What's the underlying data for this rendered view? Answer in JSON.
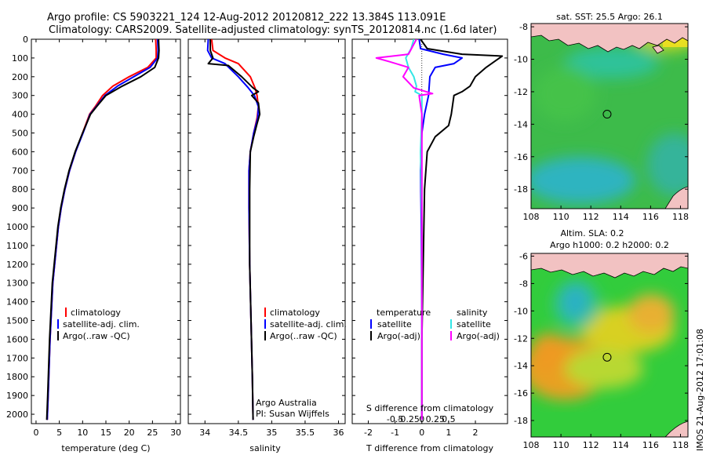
{
  "header": {
    "line1": "Argo profile: CS 5903221_124 12-Aug-2012 20120812_222 13.384S 113.091E",
    "line2": "Climatology: CARS2009. Satellite-adjusted climatology: synTS_20120814.nc (1.6d later)"
  },
  "colors": {
    "climatology": "#ff0000",
    "satellite": "#0000ff",
    "argo": "#000000",
    "sal_satellite": "#33e6e6",
    "sal_argo": "#ff00ff",
    "land": "#f2c2c2",
    "map_ocean": "#33cc55",
    "map_high": "#e8a020",
    "map_low": "#3399ee"
  },
  "chart_data": [
    {
      "type": "line",
      "panel": "temperature",
      "xlabel": "temperature (deg C)",
      "ylabel": "",
      "xlim": [
        -1,
        31
      ],
      "ylim": [
        2050,
        0
      ],
      "xticks": [
        "0",
        "5",
        "10",
        "15",
        "20",
        "25",
        "30"
      ],
      "yticks": [
        "0",
        "100",
        "200",
        "300",
        "400",
        "500",
        "600",
        "700",
        "800",
        "900",
        "1000",
        "1100",
        "1200",
        "1300",
        "1400",
        "1500",
        "1600",
        "1700",
        "1800",
        "1900",
        "2000"
      ],
      "series": [
        {
          "name": "climatology",
          "color_key": "climatology",
          "points": [
            [
              25.7,
              0
            ],
            [
              25.8,
              60
            ],
            [
              25.8,
              100
            ],
            [
              24,
              150
            ],
            [
              20,
              200
            ],
            [
              16.5,
              250
            ],
            [
              14.3,
              300
            ],
            [
              12.7,
              360
            ],
            [
              11.5,
              400
            ],
            [
              10,
              500
            ],
            [
              8.5,
              600
            ],
            [
              7.2,
              700
            ],
            [
              6.2,
              800
            ],
            [
              5.4,
              900
            ],
            [
              4.8,
              1000
            ],
            [
              3.6,
              1300
            ],
            [
              3,
              1600
            ],
            [
              2.6,
              1900
            ],
            [
              2.4,
              2030
            ]
          ]
        },
        {
          "name": "satellite-adj. clim.",
          "color_key": "satellite",
          "points": [
            [
              26.1,
              0
            ],
            [
              26.2,
              60
            ],
            [
              26.1,
              100
            ],
            [
              24.5,
              150
            ],
            [
              21,
              200
            ],
            [
              17.5,
              250
            ],
            [
              14.8,
              300
            ],
            [
              12.9,
              360
            ],
            [
              11.6,
              400
            ],
            [
              10.1,
              500
            ],
            [
              8.5,
              600
            ],
            [
              7.2,
              700
            ],
            [
              6.2,
              800
            ],
            [
              5.4,
              900
            ],
            [
              4.8,
              1000
            ],
            [
              3.6,
              1300
            ],
            [
              3,
              1600
            ],
            [
              2.6,
              1900
            ],
            [
              2.4,
              2030
            ]
          ]
        },
        {
          "name": "Argo(..raw -QC)",
          "color_key": "argo",
          "points": [
            [
              26.3,
              0
            ],
            [
              26.4,
              60
            ],
            [
              26.3,
              100
            ],
            [
              25.5,
              150
            ],
            [
              22.5,
              200
            ],
            [
              18.5,
              250
            ],
            [
              15,
              300
            ],
            [
              13,
              360
            ],
            [
              11.7,
              400
            ],
            [
              10,
              500
            ],
            [
              8.4,
              600
            ],
            [
              7.1,
              700
            ],
            [
              6.1,
              800
            ],
            [
              5.3,
              900
            ],
            [
              4.7,
              1000
            ],
            [
              3.5,
              1300
            ],
            [
              2.9,
              1600
            ],
            [
              2.5,
              1900
            ],
            [
              2.3,
              2030
            ]
          ]
        }
      ],
      "legend": {
        "placement": "bottom-center"
      }
    },
    {
      "type": "line",
      "panel": "salinity",
      "xlabel": "salinity",
      "xlim": [
        33.75,
        36.1
      ],
      "ylim": [
        2050,
        0
      ],
      "xticks": [
        "34",
        "34.5",
        "35",
        "35.5",
        "36"
      ],
      "series": [
        {
          "name": "climatology",
          "color_key": "climatology",
          "points": [
            [
              34.1,
              0
            ],
            [
              34.12,
              60
            ],
            [
              34.3,
              100
            ],
            [
              34.5,
              130
            ],
            [
              34.68,
              200
            ],
            [
              34.75,
              260
            ],
            [
              34.78,
              300
            ],
            [
              34.8,
              360
            ],
            [
              34.78,
              420
            ],
            [
              34.73,
              500
            ],
            [
              34.68,
              600
            ],
            [
              34.66,
              700
            ],
            [
              34.66,
              900
            ],
            [
              34.67,
              1200
            ],
            [
              34.69,
              1500
            ],
            [
              34.71,
              1800
            ],
            [
              34.72,
              2030
            ]
          ]
        },
        {
          "name": "satellite-adj. clim.",
          "color_key": "satellite",
          "points": [
            [
              34.05,
              0
            ],
            [
              34.04,
              60
            ],
            [
              34.1,
              100
            ],
            [
              34.3,
              130
            ],
            [
              34.5,
              200
            ],
            [
              34.65,
              260
            ],
            [
              34.74,
              300
            ],
            [
              34.8,
              360
            ],
            [
              34.79,
              420
            ],
            [
              34.73,
              500
            ],
            [
              34.68,
              600
            ],
            [
              34.66,
              700
            ],
            [
              34.66,
              900
            ],
            [
              34.67,
              1200
            ],
            [
              34.69,
              1500
            ],
            [
              34.71,
              1800
            ],
            [
              34.72,
              2030
            ]
          ]
        },
        {
          "name": "Argo(..raw -QC)",
          "color_key": "argo",
          "points": [
            [
              34.08,
              0
            ],
            [
              34.08,
              60
            ],
            [
              34.12,
              100
            ],
            [
              34.05,
              130
            ],
            [
              34.35,
              140
            ],
            [
              34.55,
              200
            ],
            [
              34.72,
              260
            ],
            [
              34.8,
              280
            ],
            [
              34.7,
              300
            ],
            [
              34.8,
              340
            ],
            [
              34.82,
              400
            ],
            [
              34.78,
              450
            ],
            [
              34.73,
              520
            ],
            [
              34.68,
              600
            ],
            [
              34.67,
              800
            ],
            [
              34.67,
              1200
            ],
            [
              34.69,
              1500
            ],
            [
              34.71,
              1800
            ],
            [
              34.72,
              2030
            ]
          ]
        }
      ],
      "legend": {
        "placement": "bottom-center"
      },
      "annotation": [
        "Argo Australia",
        "PI: Susan Wijffels"
      ]
    },
    {
      "type": "line",
      "panel": "difference",
      "xlabel": "T difference from climatology",
      "top_axis_label": "S difference from climatology",
      "xlim": [
        -2.6,
        3.2
      ],
      "ylim": [
        2050,
        0
      ],
      "xticks": [
        "-2",
        "-1",
        "0",
        "1",
        "2"
      ],
      "top_ticks": [
        "-0.5",
        "-0.25",
        "0",
        "0.25",
        "0.5"
      ],
      "series": [
        {
          "name": "satellite",
          "group": "temperature",
          "color_key": "satellite",
          "points": [
            [
              -0.1,
              0
            ],
            [
              -0.05,
              50
            ],
            [
              0.8,
              80
            ],
            [
              1.5,
              100
            ],
            [
              1.2,
              130
            ],
            [
              0.5,
              150
            ],
            [
              0.3,
              200
            ],
            [
              0.25,
              300
            ],
            [
              0.1,
              400
            ],
            [
              0,
              500
            ],
            [
              -0.05,
              700
            ],
            [
              -0.02,
              1000
            ],
            [
              0,
              1500
            ],
            [
              0,
              2030
            ]
          ]
        },
        {
          "name": "Argo(-adj)",
          "group": "temperature",
          "color_key": "argo",
          "points": [
            [
              -0.05,
              0
            ],
            [
              0.2,
              50
            ],
            [
              1.5,
              80
            ],
            [
              3,
              90
            ],
            [
              2.8,
              110
            ],
            [
              2.4,
              150
            ],
            [
              2,
              200
            ],
            [
              1.8,
              250
            ],
            [
              1.5,
              280
            ],
            [
              1.2,
              300
            ],
            [
              1.1,
              400
            ],
            [
              1,
              460
            ],
            [
              0.5,
              520
            ],
            [
              0.2,
              600
            ],
            [
              0.1,
              800
            ],
            [
              0.05,
              1200
            ],
            [
              0,
              1600
            ],
            [
              0,
              2030
            ]
          ]
        },
        {
          "name": "satellite",
          "group": "salinity",
          "color_key": "sal_satellite",
          "points": [
            [
              -0.3,
              0
            ],
            [
              -0.4,
              50
            ],
            [
              -0.6,
              100
            ],
            [
              -0.5,
              150
            ],
            [
              -0.3,
              200
            ],
            [
              -0.2,
              250
            ],
            [
              -0.25,
              280
            ],
            [
              0,
              300
            ],
            [
              0,
              400
            ],
            [
              -0.05,
              600
            ],
            [
              0,
              1000
            ],
            [
              0,
              1500
            ],
            [
              0,
              2030
            ]
          ]
        },
        {
          "name": "Argo(-adj)",
          "group": "salinity",
          "color_key": "sal_argo",
          "points": [
            [
              -0.2,
              0
            ],
            [
              -0.5,
              80
            ],
            [
              -1.7,
              100
            ],
            [
              -1.2,
              120
            ],
            [
              -0.5,
              150
            ],
            [
              -0.7,
              200
            ],
            [
              -0.3,
              260
            ],
            [
              0.4,
              290
            ],
            [
              -0.1,
              300
            ],
            [
              0,
              400
            ],
            [
              0,
              600
            ],
            [
              0,
              1000
            ],
            [
              0,
              2030
            ]
          ]
        }
      ],
      "legend": {
        "placement": "bottom-center",
        "group_titles": [
          "temperature",
          "salinity"
        ]
      }
    },
    {
      "type": "heatmap",
      "panel": "sst_map",
      "title": "sat. SST: 25.5 Argo: 26.1",
      "xlim": [
        108,
        118.5
      ],
      "ylim": [
        -19.2,
        -7.8
      ],
      "xticks": [
        "108",
        "110",
        "112",
        "114",
        "116",
        "118"
      ],
      "yticks": [
        "-8",
        "-10",
        "-12",
        "-14",
        "-16",
        "-18"
      ],
      "float_position": [
        113.09,
        -13.38
      ]
    },
    {
      "type": "heatmap",
      "panel": "sla_map",
      "title": "Altim. SLA: 0.2",
      "subtitle": "Argo h1000: 0.2 h2000: 0.2",
      "xlim": [
        108,
        118.5
      ],
      "ylim": [
        -19.2,
        -5.8
      ],
      "xticks": [
        "108",
        "110",
        "112",
        "114",
        "116",
        "118"
      ],
      "yticks": [
        "-6",
        "-8",
        "-10",
        "-12",
        "-14",
        "-16",
        "-18"
      ],
      "float_position": [
        113.09,
        -13.38
      ]
    }
  ],
  "footer": {
    "stamp": "IMOS 21-Aug-2012 17:01:08"
  }
}
